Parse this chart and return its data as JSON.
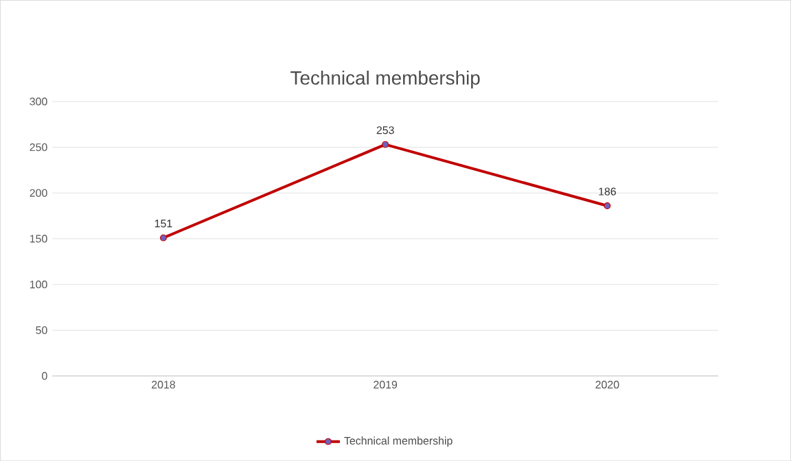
{
  "chart_data": {
    "type": "line",
    "title": "Technical membership",
    "categories": [
      "2018",
      "2019",
      "2020"
    ],
    "series": [
      {
        "name": "Technical membership",
        "color": "#c00000",
        "values": [
          151,
          253,
          186
        ]
      }
    ],
    "ylim": [
      0,
      300
    ],
    "yticks": [
      0,
      50,
      100,
      150,
      200,
      250,
      300
    ],
    "grid": "y",
    "legend": "bottom",
    "marker": "circle",
    "line_style": "solid",
    "data_labels": true
  }
}
